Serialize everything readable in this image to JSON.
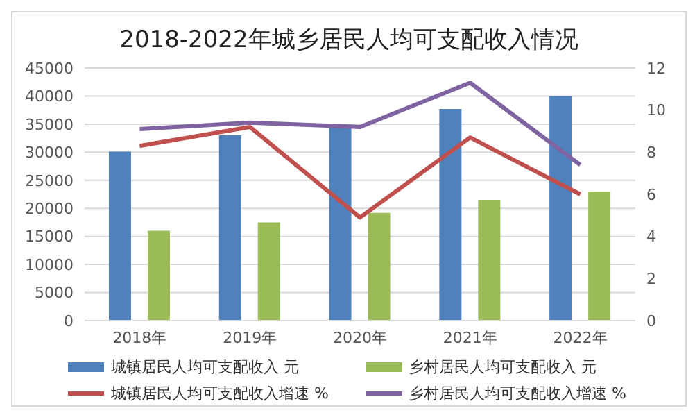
{
  "chart_data": {
    "type": "bar",
    "title": "2018-2022年城乡居民人均可支配收入情况",
    "categories": [
      "2018年",
      "2019年",
      "2020年",
      "2021年",
      "2022年"
    ],
    "series": [
      {
        "name": "城镇居民人均可支配收入 元",
        "color": "#4f81bd",
        "values": [
          30100,
          33000,
          34700,
          37700,
          40000
        ]
      },
      {
        "name": "乡村居民人均可支配收入 元",
        "color": "#9bbb59",
        "values": [
          16000,
          17500,
          19200,
          21500,
          23000
        ]
      },
      {
        "name": "城镇居民人均可支配收入增速 %",
        "type": "line",
        "axis": "y2",
        "color": "#c0504d",
        "values": [
          8.3,
          9.2,
          4.9,
          8.7,
          6.0
        ]
      },
      {
        "name": "乡村居民人均可支配收入增速 %",
        "type": "line",
        "axis": "y2",
        "color": "#8064a2",
        "values": [
          9.1,
          9.4,
          9.2,
          11.3,
          7.4
        ]
      }
    ],
    "ylim": [
      0,
      45000
    ],
    "yticks": [
      0,
      5000,
      10000,
      15000,
      20000,
      25000,
      30000,
      35000,
      40000,
      45000
    ],
    "y2lim": [
      0,
      12
    ],
    "y2ticks": [
      0,
      2,
      4,
      6,
      8,
      10,
      12
    ],
    "grid": "y",
    "legend": "bottom",
    "marker": "none"
  }
}
